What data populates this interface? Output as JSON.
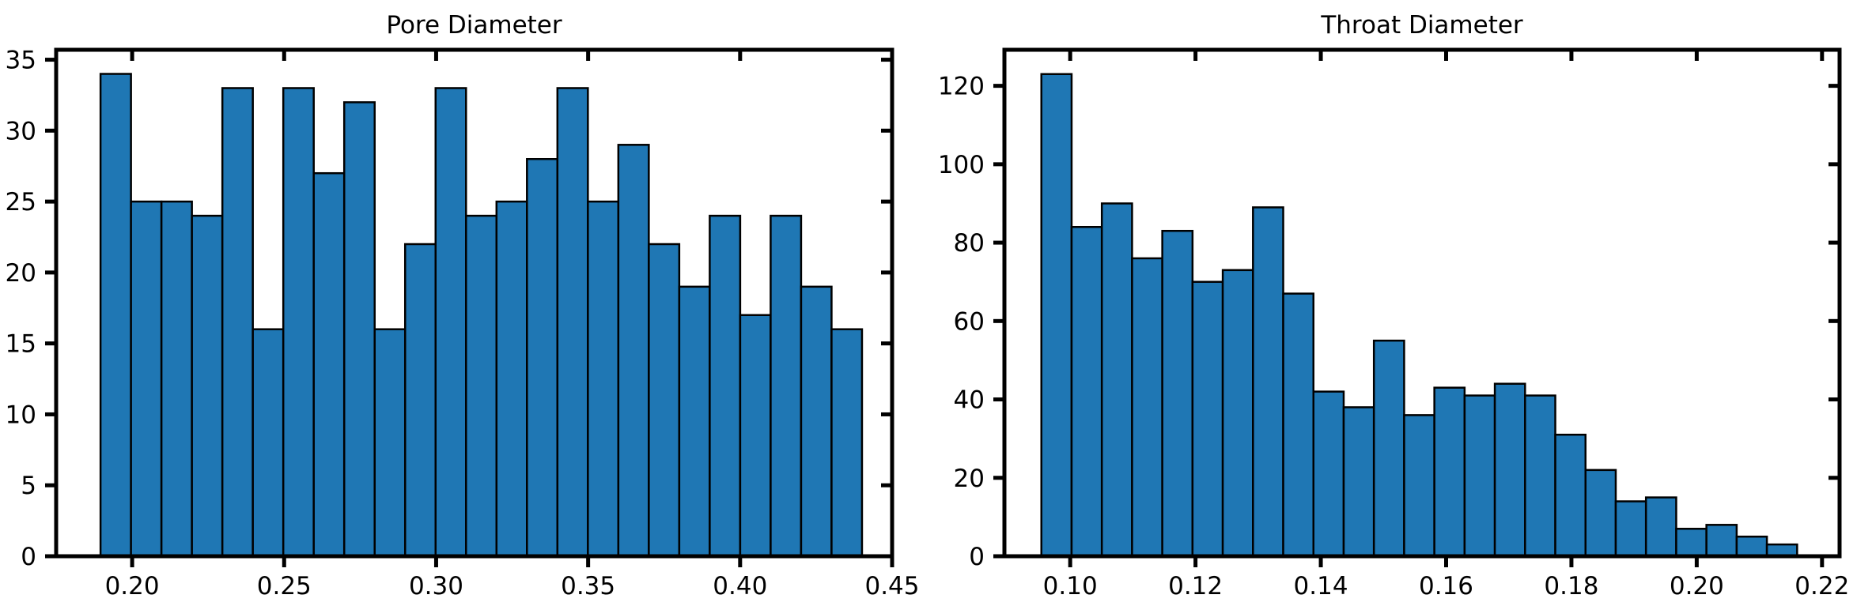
{
  "chart_data": [
    {
      "type": "bar",
      "title": "Pore Diameter",
      "xlabel": "",
      "ylabel": "",
      "bar_color": "#1f77b4",
      "edge_color": "#000000",
      "xlim": [
        0.175,
        0.45
      ],
      "ylim": [
        0,
        35.7
      ],
      "xticks": [
        0.2,
        0.25,
        0.3,
        0.35,
        0.4,
        0.45
      ],
      "xtick_labels": [
        "0.20",
        "0.25",
        "0.30",
        "0.35",
        "0.40",
        "0.45"
      ],
      "yticks": [
        0,
        5,
        10,
        15,
        20,
        25,
        30,
        35
      ],
      "ytick_labels": [
        "0",
        "5",
        "10",
        "15",
        "20",
        "25",
        "30",
        "35"
      ],
      "bin_start": 0.1896,
      "bin_width": 0.01002,
      "values": [
        34,
        25,
        25,
        24,
        33,
        16,
        33,
        27,
        32,
        16,
        22,
        33,
        24,
        25,
        28,
        33,
        25,
        29,
        22,
        19,
        24,
        17,
        24,
        19,
        16
      ]
    },
    {
      "type": "bar",
      "title": "Throat Diameter",
      "xlabel": "",
      "ylabel": "",
      "bar_color": "#1f77b4",
      "edge_color": "#000000",
      "xlim": [
        0.0895,
        0.2228
      ],
      "ylim": [
        0,
        129.2
      ],
      "xticks": [
        0.1,
        0.12,
        0.14,
        0.16,
        0.18,
        0.2,
        0.22
      ],
      "xtick_labels": [
        "0.10",
        "0.12",
        "0.14",
        "0.16",
        "0.18",
        "0.20",
        "0.22"
      ],
      "yticks": [
        0,
        20,
        40,
        60,
        80,
        100,
        120
      ],
      "ytick_labels": [
        "0",
        "20",
        "40",
        "60",
        "80",
        "100",
        "120"
      ],
      "bin_start": 0.0954,
      "bin_width": 0.004825,
      "values": [
        123,
        84,
        90,
        76,
        83,
        70,
        73,
        89,
        67,
        42,
        38,
        55,
        36,
        43,
        41,
        44,
        41,
        31,
        22,
        14,
        15,
        7,
        8,
        5,
        3
      ]
    }
  ]
}
